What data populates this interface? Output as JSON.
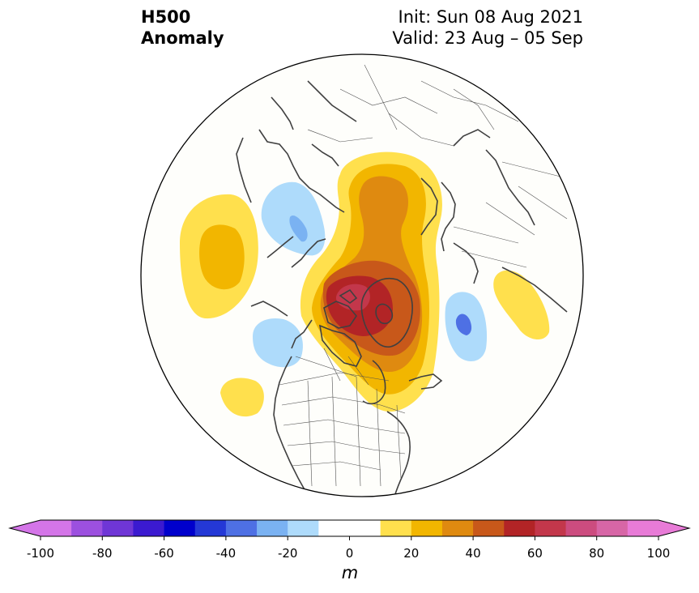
{
  "title": {
    "variable": "H500",
    "subtitle": "Anomaly",
    "init": "Init: Sun 08 Aug 2021",
    "valid": "Valid: 23 Aug – 05 Sep"
  },
  "colorbar": {
    "unit": "m",
    "ticks": [
      "-100",
      "-80",
      "-60",
      "-40",
      "-20",
      "0",
      "20",
      "40",
      "60",
      "80",
      "100"
    ],
    "colors": [
      "#d475e8",
      "#9c50df",
      "#6f36d6",
      "#3b1ad0",
      "#0000cc",
      "#2438d6",
      "#4e70e4",
      "#7ab2f2",
      "#aedbfb",
      "#ffffff",
      "#ffffff",
      "#ffe04d",
      "#f2b600",
      "#df8a10",
      "#c8581a",
      "#b22426",
      "#c3374b",
      "#cc4c7f",
      "#d766a6",
      "#e87bd7"
    ]
  }
}
